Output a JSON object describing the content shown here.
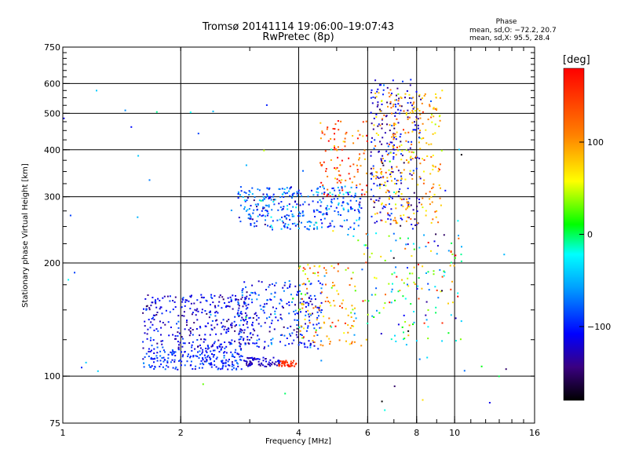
{
  "title_line1": "Tromsø 20141114 19:06:00–19:07:43",
  "title_line2": "RwPretec (8p)",
  "phase_stats": {
    "heading": "Phase",
    "o_mode": "mean, sd,O: −72.2, 20.7",
    "x_mode": "mean, sd,X:  95.5, 28.4"
  },
  "colorbar": {
    "unit": "[deg]",
    "ticks": [
      {
        "value": 100,
        "label": "100"
      },
      {
        "value": 0,
        "label": "0"
      },
      {
        "value": -100,
        "label": "−100"
      }
    ],
    "range": [
      -180,
      180
    ],
    "colormap": [
      "#000000",
      "#3a0080",
      "#0000ff",
      "#00a0ff",
      "#00ffff",
      "#00ff00",
      "#ffff00",
      "#ff8000",
      "#ff0000"
    ]
  },
  "chart_data": {
    "type": "scatter",
    "title": "Tromsø 20141114 19:06:00–19:07:43",
    "subtitle": "RwPretec (8p)",
    "xlabel": "Frequency [MHz]",
    "ylabel": "Stationary phase Virtual Height [km]",
    "xscale": "log",
    "yscale": "log",
    "xlim": [
      1,
      16
    ],
    "ylim": [
      75,
      750
    ],
    "grid": true,
    "x_ticks": [
      {
        "value": 1,
        "label": "1",
        "grid": false
      },
      {
        "value": 2,
        "label": "2",
        "grid": true
      },
      {
        "value": 4,
        "label": "4",
        "grid": true
      },
      {
        "value": 6,
        "label": "6",
        "grid": true
      },
      {
        "value": 8,
        "label": "8",
        "grid": true
      },
      {
        "value": 10,
        "label": "10",
        "grid": true
      },
      {
        "value": 16,
        "label": "16",
        "grid": false
      }
    ],
    "y_ticks": [
      {
        "value": 75,
        "label": "75",
        "grid": false
      },
      {
        "value": 100,
        "label": "100",
        "grid": true
      },
      {
        "value": 200,
        "label": "200",
        "grid": true
      },
      {
        "value": 300,
        "label": "300",
        "grid": true
      },
      {
        "value": 400,
        "label": "400",
        "grid": true
      },
      {
        "value": 500,
        "label": "500",
        "grid": true
      },
      {
        "value": 600,
        "label": "600",
        "grid": true
      },
      {
        "value": 750,
        "label": "750",
        "grid": false
      }
    ],
    "point_groups": [
      {
        "name": "E-region lower cluster",
        "freq": [
          1.6,
          2.9
        ],
        "height": [
          104,
          118
        ],
        "phase": -95,
        "phase_sd": 15,
        "count": 200
      },
      {
        "name": "E-region upper cluster",
        "freq": [
          1.6,
          3.0
        ],
        "height": [
          118,
          165
        ],
        "phase": -115,
        "phase_sd": 20,
        "count": 320
      },
      {
        "name": "Es trace",
        "freq": [
          2.9,
          3.6
        ],
        "height": [
          106,
          112
        ],
        "phase": -125,
        "phase_sd": 12,
        "count": 70
      },
      {
        "name": "Es X trace",
        "freq": [
          3.55,
          3.95
        ],
        "height": [
          106,
          110
        ],
        "phase": 155,
        "phase_sd": 10,
        "count": 40
      },
      {
        "name": "F1 o-trace",
        "freq": [
          2.8,
          4.6
        ],
        "height": [
          118,
          180
        ],
        "phase": -100,
        "phase_sd": 25,
        "count": 260
      },
      {
        "name": "F1 x-trace",
        "freq": [
          4.0,
          5.6
        ],
        "height": [
          120,
          200
        ],
        "phase": 90,
        "phase_sd": 40,
        "count": 120
      },
      {
        "name": "F2 o-trace",
        "freq": [
          2.8,
          5.8
        ],
        "height": [
          245,
          320
        ],
        "phase": -80,
        "phase_sd": 30,
        "count": 340
      },
      {
        "name": "F2 x-trace",
        "freq": [
          4.5,
          6.0
        ],
        "height": [
          300,
          480
        ],
        "phase": 140,
        "phase_sd": 35,
        "count": 100
      },
      {
        "name": "F2 cusp o-mode",
        "freq": [
          6.1,
          8.2
        ],
        "height": [
          250,
          620
        ],
        "phase": -120,
        "phase_sd": 25,
        "count": 220
      },
      {
        "name": "F2 cusp x-mode",
        "freq": [
          6.2,
          9.3
        ],
        "height": [
          255,
          580
        ],
        "phase": 95,
        "phase_sd": 30,
        "count": 260
      },
      {
        "name": "Sparse high-frequency points",
        "freq": [
          5.5,
          10.5
        ],
        "height": [
          120,
          240
        ],
        "phase": 20,
        "phase_sd": 90,
        "count": 160
      },
      {
        "name": "Scattered noise",
        "freq": [
          1.0,
          14.5
        ],
        "height": [
          80,
          600
        ],
        "phase": -60,
        "phase_sd": 60,
        "count": 70
      }
    ]
  }
}
